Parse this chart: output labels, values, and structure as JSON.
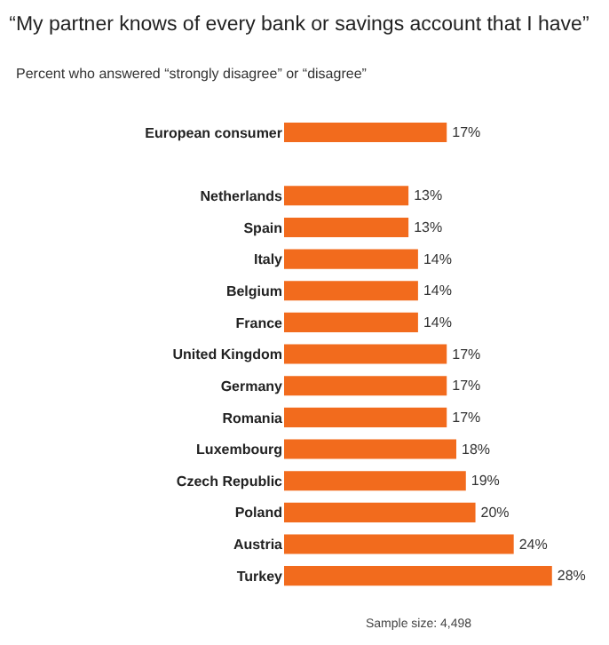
{
  "chart_data": {
    "type": "bar",
    "orientation": "horizontal",
    "title": "“My partner knows of every bank or savings account that I have”",
    "subtitle": "Percent who answered “strongly disagree” or “disagree”",
    "categories": [
      "European consumer",
      null,
      "Netherlands",
      "Spain",
      "Italy",
      "Belgium",
      "France",
      "United Kingdom",
      "Germany",
      "Romania",
      "Luxembourg",
      "Czech Republic",
      "Poland",
      "Austria",
      "Turkey"
    ],
    "values": [
      17,
      null,
      13,
      13,
      14,
      14,
      14,
      17,
      17,
      17,
      18,
      19,
      20,
      24,
      28
    ],
    "value_labels": [
      "17%",
      null,
      "13%",
      "13%",
      "14%",
      "14%",
      "14%",
      "17%",
      "17%",
      "17%",
      "18%",
      "19%",
      "20%",
      "24%",
      "28%"
    ],
    "color": "#f26b1d",
    "annotations": [
      "Sample size: 4,498"
    ]
  }
}
